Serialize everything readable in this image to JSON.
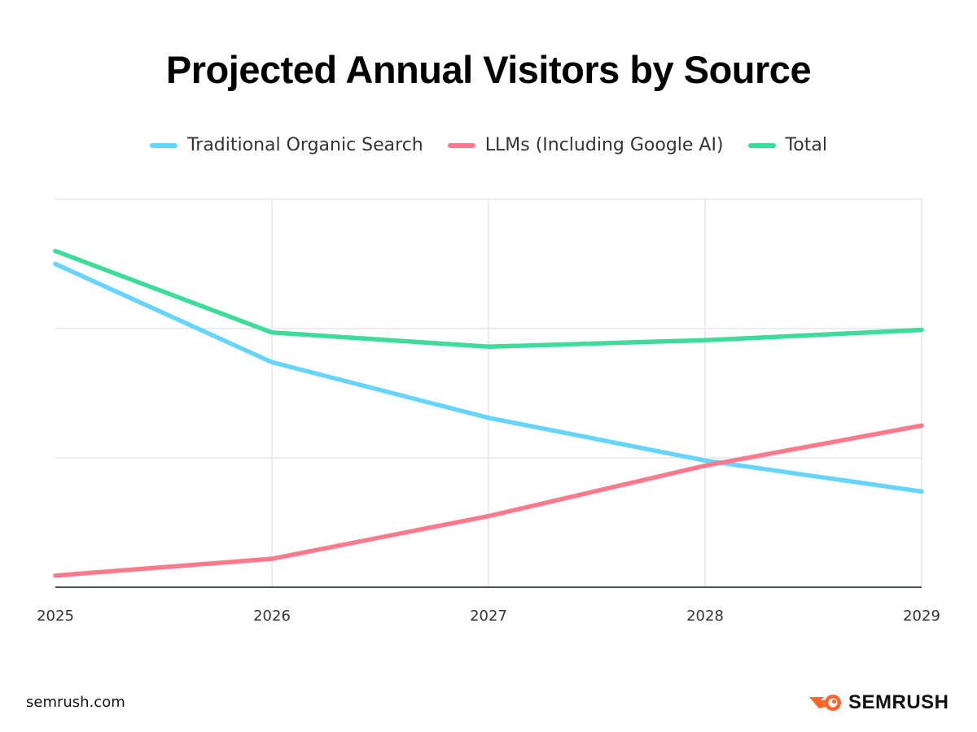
{
  "chart_data": {
    "type": "line",
    "title": "Projected Annual Visitors by Source",
    "xlabel": "",
    "ylabel": "",
    "categories": [
      "2025",
      "2026",
      "2027",
      "2028",
      "2029"
    ],
    "ylim": [
      0,
      3
    ],
    "y_gridlines": [
      0,
      1,
      2,
      3
    ],
    "y_tick_labels_shown": false,
    "grid": true,
    "legend_position": "top",
    "series": [
      {
        "name": "Traditional Organic Search",
        "color": "#66d4fb",
        "values": [
          2.5,
          1.74,
          1.31,
          0.98,
          0.74
        ]
      },
      {
        "name": "LLMs (Including Google AI)",
        "color": "#fd7a8d",
        "values": [
          0.09,
          0.22,
          0.55,
          0.94,
          1.25
        ]
      },
      {
        "name": "Total",
        "color": "#3ddc9a",
        "values": [
          2.6,
          1.97,
          1.86,
          1.91,
          1.99
        ]
      }
    ]
  },
  "footer": {
    "site": "semrush.com",
    "logo_text": "SEMRUSH",
    "logo_color": "#ff642d"
  }
}
